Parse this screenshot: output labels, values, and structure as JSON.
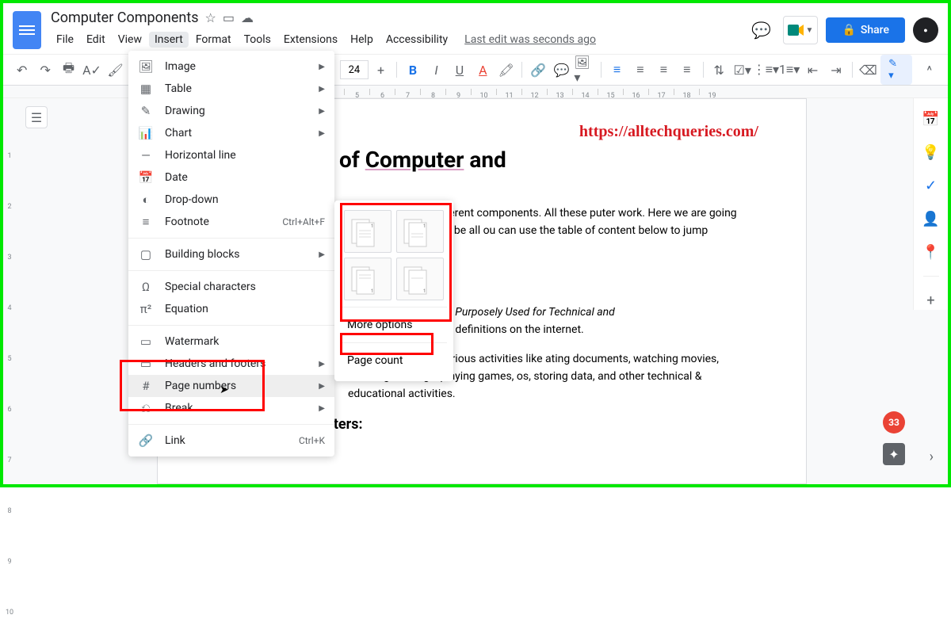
{
  "doc": {
    "title": "Computer Components"
  },
  "menubar": [
    "File",
    "Edit",
    "View",
    "Insert",
    "Format",
    "Tools",
    "Extensions",
    "Help",
    "Accessibility"
  ],
  "last_edit": "Last edit was seconds ago",
  "share_label": "Share",
  "toolbar": {
    "fontsize": "24"
  },
  "ruler_start": 5,
  "ruler_ticks": [
    "5",
    "6",
    "7",
    "8",
    "9",
    "10",
    "11",
    "12",
    "13",
    "14",
    "15",
    "16",
    "17",
    "18",
    "19"
  ],
  "vruler": [
    "",
    "",
    "1",
    "",
    "2",
    "",
    "3",
    "",
    "4",
    "",
    "5",
    "",
    "6",
    "",
    "7",
    "",
    "8",
    "",
    "9",
    "",
    "10"
  ],
  "insert_menu": {
    "group1": [
      {
        "icon": "🖼",
        "label": "Image",
        "arrow": true
      },
      {
        "icon": "▦",
        "label": "Table",
        "arrow": true
      },
      {
        "icon": "✎",
        "label": "Drawing",
        "arrow": true
      },
      {
        "icon": "📊",
        "label": "Chart",
        "arrow": true
      },
      {
        "icon": "—",
        "label": "Horizontal line"
      },
      {
        "icon": "📅",
        "label": "Date"
      },
      {
        "icon": "◐",
        "label": "Drop-down"
      },
      {
        "icon": "≡",
        "label": "Footnote",
        "shortcut": "Ctrl+Alt+F"
      }
    ],
    "group2": [
      {
        "icon": "▢",
        "label": "Building blocks",
        "arrow": true
      }
    ],
    "group3": [
      {
        "icon": "Ω",
        "label": "Special characters"
      },
      {
        "icon": "π²",
        "label": "Equation"
      }
    ],
    "group4": [
      {
        "icon": "▭",
        "label": "Watermark"
      },
      {
        "icon": "▭",
        "label": "Headers and footers",
        "arrow": true
      },
      {
        "icon": "#",
        "label": "Page numbers",
        "arrow": true,
        "highlighted": true
      },
      {
        "icon": "⎌",
        "label": "Break",
        "arrow": true
      }
    ],
    "group5": [
      {
        "icon": "🔗",
        "label": "Link",
        "shortcut": "Ctrl+K"
      }
    ]
  },
  "pn_submenu": {
    "more": "More options",
    "count": "Page count"
  },
  "page": {
    "watermark": "https://alltechqueries.com/",
    "h1_prefix": "omponents of ",
    "h1_underlined": "Computer",
    "h1_suffix": " and",
    "p1": "eral different components. All these puter work. Here we are going to describe all ou can use the table of content below to jump",
    "p2": "Machine Purposely Used for Technical and",
    "p2b": "echnical definitions on the internet.",
    "p3": "helps you perform various activities like ating documents, watching movies, listening to songs, playing games, os, storing data, and other technical & educational activities.",
    "h3": "History of Computers:"
  },
  "badge": "33",
  "colors": {
    "brand_blue": "#1a73e8",
    "red_highlight": "#ff0000",
    "watermark_red": "#d71921",
    "green_border": "#00e800"
  }
}
